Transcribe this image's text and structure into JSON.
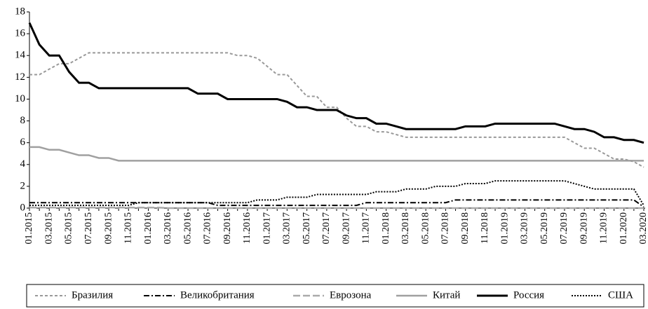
{
  "chart_data": {
    "type": "line",
    "categories": [
      "01.2015",
      null,
      "03.2015",
      null,
      "05.2015",
      null,
      "07.2015",
      null,
      "09.2015",
      null,
      "11.2015",
      null,
      "01.2016",
      null,
      "03.2016",
      null,
      "05.2016",
      null,
      "07.2016",
      null,
      "09.2016",
      null,
      "11.2016",
      null,
      "01.2017",
      null,
      "03.2017",
      null,
      "05.2017",
      null,
      "07.2017",
      null,
      "09.2017",
      null,
      "11.2017",
      null,
      "01.2018",
      null,
      "03.2018",
      null,
      "05.2018",
      null,
      "07.2018",
      null,
      "09.2018",
      null,
      "11.2018",
      null,
      "01.2019",
      null,
      "03.2019",
      null,
      "05.2019",
      null,
      "07.2019",
      null,
      "09.2019",
      null,
      "11.2019",
      null,
      "01.2020",
      null,
      "03.2020"
    ],
    "ylim": [
      0,
      18
    ],
    "yticks": [
      0,
      2,
      4,
      6,
      8,
      10,
      12,
      14,
      16,
      18
    ],
    "legend": "bottom",
    "series": [
      {
        "name": "Бразилия",
        "color": "#999999",
        "style": "dashed",
        "values": [
          12.25,
          12.25,
          12.75,
          13.25,
          13.25,
          13.75,
          14.25,
          14.25,
          14.25,
          14.25,
          14.25,
          14.25,
          14.25,
          14.25,
          14.25,
          14.25,
          14.25,
          14.25,
          14.25,
          14.25,
          14.25,
          14,
          14,
          13.75,
          13,
          12.25,
          12.25,
          11.25,
          10.25,
          10.25,
          9.25,
          9.25,
          8.25,
          7.5,
          7.5,
          7,
          7,
          6.75,
          6.5,
          6.5,
          6.5,
          6.5,
          6.5,
          6.5,
          6.5,
          6.5,
          6.5,
          6.5,
          6.5,
          6.5,
          6.5,
          6.5,
          6.5,
          6.5,
          6.5,
          6,
          5.5,
          5.5,
          5,
          4.5,
          4.5,
          4.25,
          3.75
        ]
      },
      {
        "name": "Великобритания",
        "color": "#000000",
        "style": "dashdot",
        "values": [
          0.5,
          0.5,
          0.5,
          0.5,
          0.5,
          0.5,
          0.5,
          0.5,
          0.5,
          0.5,
          0.5,
          0.5,
          0.5,
          0.5,
          0.5,
          0.5,
          0.5,
          0.5,
          0.5,
          0.25,
          0.25,
          0.25,
          0.25,
          0.25,
          0.25,
          0.25,
          0.25,
          0.25,
          0.25,
          0.25,
          0.25,
          0.25,
          0.25,
          0.25,
          0.5,
          0.5,
          0.5,
          0.5,
          0.5,
          0.5,
          0.5,
          0.5,
          0.5,
          0.75,
          0.75,
          0.75,
          0.75,
          0.75,
          0.75,
          0.75,
          0.75,
          0.75,
          0.75,
          0.75,
          0.75,
          0.75,
          0.75,
          0.75,
          0.75,
          0.75,
          0.75,
          0.75,
          0.1
        ]
      },
      {
        "name": "Еврозона",
        "color": "#aaaaaa",
        "style": "longdash",
        "values": [
          0.05,
          0.05,
          0.05,
          0.05,
          0.05,
          0.05,
          0.05,
          0.05,
          0.05,
          0.05,
          0.05,
          0.05,
          0.05,
          0.05,
          0,
          0,
          0,
          0,
          0,
          0,
          0,
          0,
          0,
          0,
          0,
          0,
          0,
          0,
          0,
          0,
          0,
          0,
          0,
          0,
          0,
          0,
          0,
          0,
          0,
          0,
          0,
          0,
          0,
          0,
          0,
          0,
          0,
          0,
          0,
          0,
          0,
          0,
          0,
          0,
          0,
          0,
          0,
          0,
          0,
          0,
          0,
          0,
          0
        ]
      },
      {
        "name": "Китай",
        "color": "#a0a0a0",
        "style": "solid",
        "values": [
          5.6,
          5.6,
          5.35,
          5.35,
          5.1,
          4.85,
          4.85,
          4.6,
          4.6,
          4.35,
          4.35,
          4.35,
          4.35,
          4.35,
          4.35,
          4.35,
          4.35,
          4.35,
          4.35,
          4.35,
          4.35,
          4.35,
          4.35,
          4.35,
          4.35,
          4.35,
          4.35,
          4.35,
          4.35,
          4.35,
          4.35,
          4.35,
          4.35,
          4.35,
          4.35,
          4.35,
          4.35,
          4.35,
          4.35,
          4.35,
          4.35,
          4.35,
          4.35,
          4.35,
          4.35,
          4.35,
          4.35,
          4.35,
          4.35,
          4.35,
          4.35,
          4.35,
          4.35,
          4.35,
          4.35,
          4.35,
          4.35,
          4.35,
          4.35,
          4.35,
          4.35,
          4.35,
          4.35
        ]
      },
      {
        "name": "Россия",
        "color": "#000000",
        "style": "solid",
        "values": [
          17,
          15,
          14,
          14,
          12.5,
          11.5,
          11.5,
          11,
          11,
          11,
          11,
          11,
          11,
          11,
          11,
          11,
          11,
          10.5,
          10.5,
          10.5,
          10,
          10,
          10,
          10,
          10,
          10,
          9.75,
          9.25,
          9.25,
          9,
          9,
          9,
          8.5,
          8.25,
          8.25,
          7.75,
          7.75,
          7.5,
          7.25,
          7.25,
          7.25,
          7.25,
          7.25,
          7.25,
          7.5,
          7.5,
          7.5,
          7.75,
          7.75,
          7.75,
          7.75,
          7.75,
          7.75,
          7.75,
          7.5,
          7.25,
          7.25,
          7,
          6.5,
          6.5,
          6.25,
          6.25,
          6
        ]
      },
      {
        "name": "США",
        "color": "#000000",
        "style": "dotted",
        "values": [
          0.25,
          0.25,
          0.25,
          0.25,
          0.25,
          0.25,
          0.25,
          0.25,
          0.25,
          0.25,
          0.25,
          0.5,
          0.5,
          0.5,
          0.5,
          0.5,
          0.5,
          0.5,
          0.5,
          0.5,
          0.5,
          0.5,
          0.5,
          0.75,
          0.75,
          0.75,
          1,
          1,
          1,
          1.25,
          1.25,
          1.25,
          1.25,
          1.25,
          1.25,
          1.5,
          1.5,
          1.5,
          1.75,
          1.75,
          1.75,
          2,
          2,
          2,
          2.25,
          2.25,
          2.25,
          2.5,
          2.5,
          2.5,
          2.5,
          2.5,
          2.5,
          2.5,
          2.5,
          2.25,
          2,
          1.75,
          1.75,
          1.75,
          1.75,
          1.75,
          0.25
        ]
      }
    ]
  }
}
